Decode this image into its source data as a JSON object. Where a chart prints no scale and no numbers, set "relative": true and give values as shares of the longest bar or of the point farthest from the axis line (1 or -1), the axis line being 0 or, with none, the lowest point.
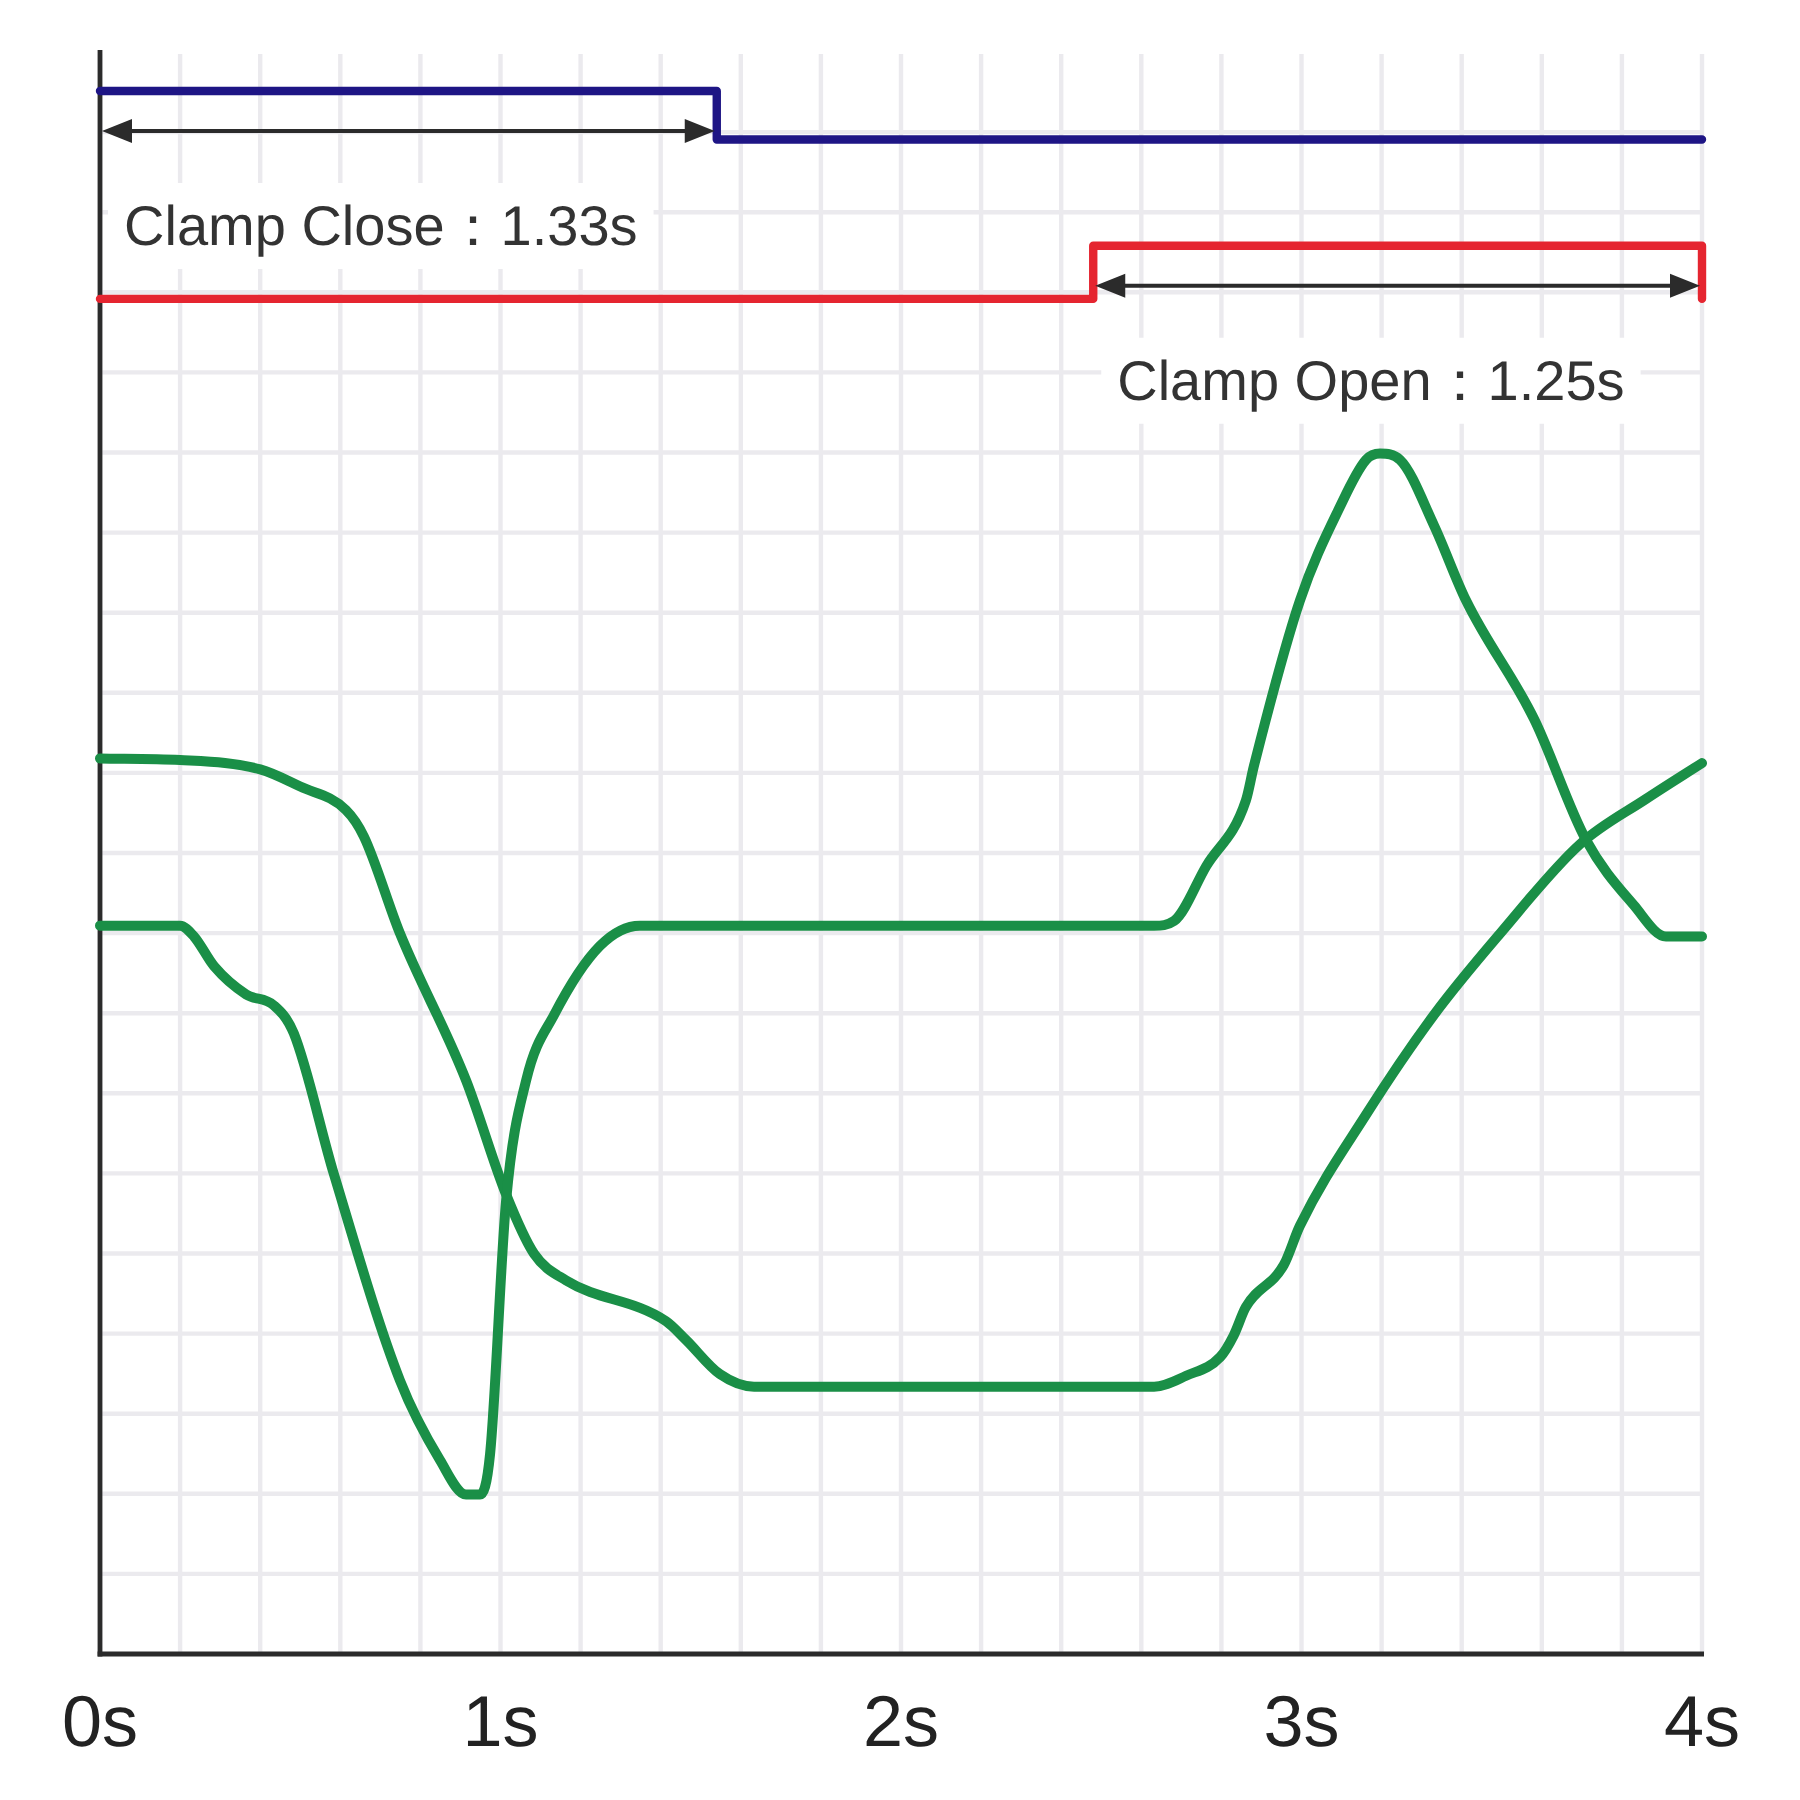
{
  "chart_data": {
    "type": "line",
    "relative": true,
    "grid": true,
    "line_style": "solid",
    "xlim": [
      0,
      4
    ],
    "xticks": [
      {
        "value": 0,
        "label": "0s"
      },
      {
        "value": 0.2,
        "label": null
      },
      {
        "value": 0.4,
        "label": null
      },
      {
        "value": 0.6,
        "label": null
      },
      {
        "value": 0.8,
        "label": null
      },
      {
        "value": 1,
        "label": "1s"
      },
      {
        "value": 1.2,
        "label": null
      },
      {
        "value": 1.4,
        "label": null
      },
      {
        "value": 1.6,
        "label": null
      },
      {
        "value": 1.8,
        "label": null
      },
      {
        "value": 2,
        "label": "2s"
      },
      {
        "value": 2.2,
        "label": null
      },
      {
        "value": 2.4,
        "label": null
      },
      {
        "value": 2.6,
        "label": null
      },
      {
        "value": 2.8,
        "label": null
      },
      {
        "value": 3,
        "label": "3s"
      },
      {
        "value": 3.2,
        "label": null
      },
      {
        "value": 3.4,
        "label": null
      },
      {
        "value": 3.6,
        "label": null
      },
      {
        "value": 3.8,
        "label": null
      },
      {
        "value": 4,
        "label": "4s"
      }
    ],
    "annotations": [
      "Clamp Close：1.33s",
      "Clamp Open：1.25s"
    ],
    "series": [
      {
        "type": "step",
        "color": "#1e1585",
        "x": [
          0,
          1.54,
          4
        ],
        "values": [
          1,
          0.969,
          0.969
        ]
      },
      {
        "type": "step",
        "color": "#e52530",
        "x": [
          0,
          2.48,
          4
        ],
        "values": [
          0.867,
          0.901,
          0.867
        ]
      },
      {
        "color": "#1a8f47",
        "x": [
          0,
          0.2,
          0.4,
          0.5,
          0.614,
          0.659,
          0.749,
          0.914,
          1.014,
          1.084,
          1.164,
          1.413,
          1.463,
          1.548,
          1.633,
          1.998,
          2.632,
          2.712,
          2.797,
          2.831,
          2.861,
          2.956,
          2.996,
          3.161,
          3.331,
          3.496,
          3.695,
          3.86,
          4
        ],
        "values": [
          0.573,
          0.572,
          0.566,
          0.555,
          0.54,
          0.523,
          0.461,
          0.367,
          0.294,
          0.256,
          0.239,
          0.213,
          0.201,
          0.179,
          0.171,
          0.171,
          0.171,
          0.178,
          0.19,
          0.204,
          0.222,
          0.249,
          0.274,
          0.345,
          0.409,
          0.461,
          0.518,
          0.547,
          0.57
        ]
      },
      {
        "color": "#1a8f47",
        "x": [
          0,
          0.2,
          0.235,
          0.285,
          0.365,
          0.434,
          0.484,
          0.584,
          0.749,
          0.849,
          0.914,
          0.949,
          0.974,
          1.014,
          1.064,
          1.134,
          1.248,
          1.348,
          1.998,
          2.632,
          2.682,
          2.762,
          2.861,
          2.881,
          2.996,
          3.096,
          3.161,
          3.196,
          3.246,
          3.331,
          3.411,
          3.581,
          3.71,
          3.83,
          3.91,
          4
        ],
        "values": [
          0.466,
          0.466,
          0.459,
          0.44,
          0.422,
          0.415,
          0.397,
          0.307,
          0.175,
          0.124,
          0.102,
          0.102,
          0.128,
          0.29,
          0.367,
          0.409,
          0.453,
          0.466,
          0.466,
          0.466,
          0.469,
          0.504,
          0.546,
          0.568,
          0.674,
          0.734,
          0.764,
          0.768,
          0.764,
          0.722,
          0.674,
          0.598,
          0.521,
          0.479,
          0.459,
          0.459
        ]
      }
    ]
  }
}
